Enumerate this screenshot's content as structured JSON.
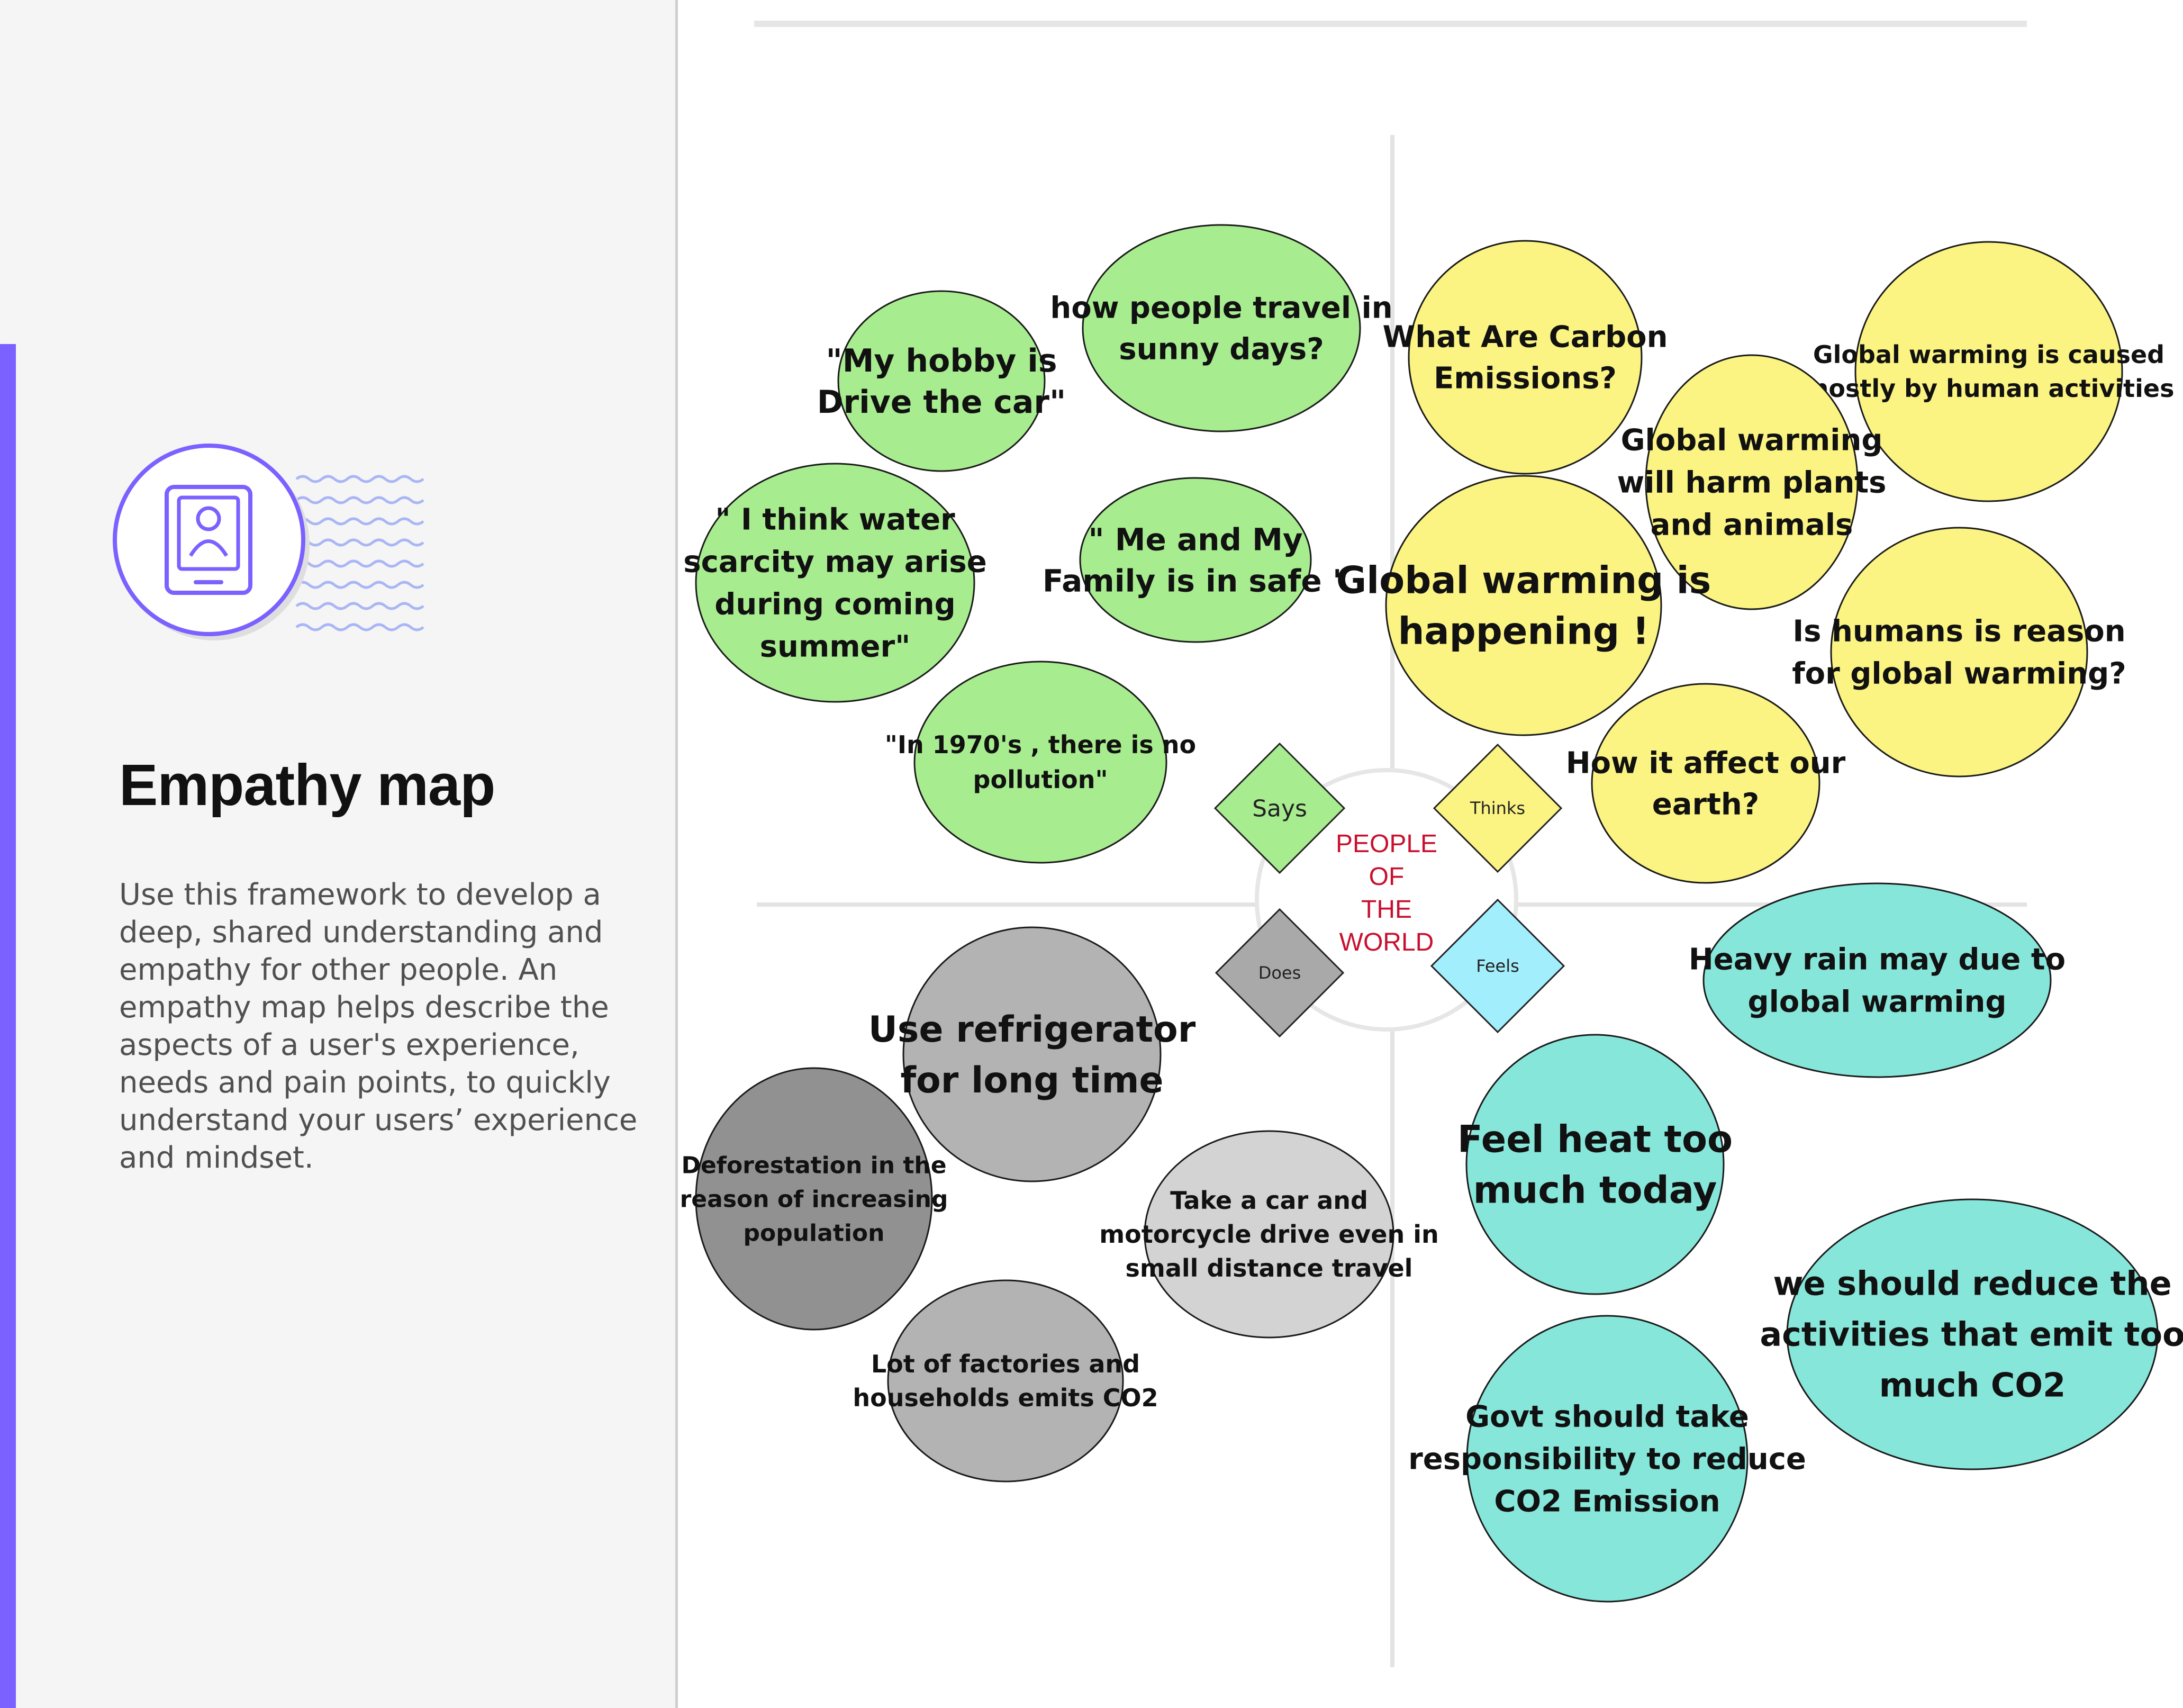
{
  "panel": {
    "title": "Empathy map",
    "description": "Use this framework to develop a deep, shared understanding and empathy for other people. An empathy map helps describe the aspects of a user's experience, needs and pain points, to quickly understand your users’ experience and mindset.",
    "icon": "profile-tablet-icon"
  },
  "center": {
    "lines": [
      "PEOPLE",
      "OF",
      "THE",
      "WORLD"
    ],
    "color": "#c8102e"
  },
  "quadrants": [
    {
      "key": "says",
      "label": "Says",
      "color": "#a8ec90",
      "notes": [
        "\"My hobby is Drive the car\"",
        "how people travel in sunny days?",
        "\" I think water scarcity may arise during coming summer\"",
        "\" Me and My Family is in safe \"",
        "\"In 1970's , there is no pollution\""
      ]
    },
    {
      "key": "thinks",
      "label": "Thinks",
      "color": "#fbf483",
      "notes": [
        "What Are Carbon Emissions?",
        "Global warming is caused mostly by human activities",
        "Global warming will harm plants and animals",
        "Global warming is happening !",
        "Is humans is reason for global warming?",
        "How it affect our earth?"
      ]
    },
    {
      "key": "does",
      "label": "Does",
      "color": "#b3b3b3",
      "notes": [
        "Use refrigerator for long time",
        "Deforestation in the reason of increasing population",
        "Take a car and motorcycle drive even in small distance travel",
        "Lot of factories and households emits CO2"
      ]
    },
    {
      "key": "feels",
      "label": "Feels",
      "color": "#86e6da",
      "notes": [
        "Heavy rain may due to global warming",
        "Feel heat too much today",
        "we should reduce the activities that emit too much CO2",
        "Govt should take responsibility to reduce CO2 Emission"
      ]
    }
  ],
  "colors": {
    "sidebar_bg": "#f5f5f5",
    "accent": "#7b61ff",
    "grid_line": "#e3e3e3",
    "diamond_does": "#a9a9a9",
    "diamond_feels": "#a2eefc",
    "note_deforestation": "#919191",
    "note_take_car": "#d3d3d3"
  }
}
